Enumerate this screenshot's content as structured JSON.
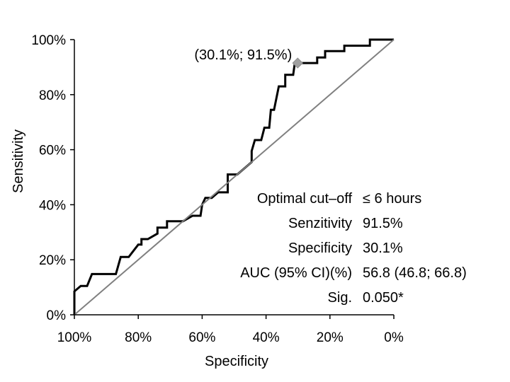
{
  "chart_data": {
    "type": "line",
    "title": "",
    "xlabel": "Specificity",
    "ylabel": "Sensitivity",
    "x_reversed": true,
    "xlim": [
      100,
      0
    ],
    "ylim": [
      0,
      100
    ],
    "grid": false,
    "legend": "none",
    "x_ticks": [
      "100%",
      "80%",
      "60%",
      "40%",
      "20%",
      "0%"
    ],
    "x_tick_values": [
      100,
      80,
      60,
      40,
      20,
      0
    ],
    "y_ticks": [
      "0%",
      "20%",
      "40%",
      "60%",
      "80%",
      "100%"
    ],
    "y_tick_values": [
      0,
      20,
      40,
      60,
      80,
      100
    ],
    "series": [
      {
        "role": "roc-curve",
        "color": "#000000",
        "points": [
          [
            100,
            0
          ],
          [
            100,
            8.5
          ],
          [
            98,
            10.5
          ],
          [
            96,
            10.5
          ],
          [
            94.5,
            14.8
          ],
          [
            87,
            14.8
          ],
          [
            85.5,
            21
          ],
          [
            83,
            21
          ],
          [
            80,
            25.5
          ],
          [
            79,
            25.5
          ],
          [
            79,
            27.5
          ],
          [
            77,
            27.5
          ],
          [
            74,
            29.5
          ],
          [
            74,
            31.7
          ],
          [
            71,
            31.7
          ],
          [
            71,
            34
          ],
          [
            66,
            34
          ],
          [
            63,
            36
          ],
          [
            60.5,
            36
          ],
          [
            60,
            40
          ],
          [
            59,
            42.5
          ],
          [
            57,
            42.5
          ],
          [
            55,
            44.5
          ],
          [
            52,
            44.5
          ],
          [
            52,
            51
          ],
          [
            49,
            51
          ],
          [
            44.5,
            55.5
          ],
          [
            44.5,
            59.5
          ],
          [
            43.5,
            63.5
          ],
          [
            41.5,
            63.5
          ],
          [
            40.5,
            68
          ],
          [
            39,
            68
          ],
          [
            38.5,
            74.5
          ],
          [
            37.5,
            74.5
          ],
          [
            36,
            83
          ],
          [
            34,
            83
          ],
          [
            34,
            87.2
          ],
          [
            31.5,
            87.2
          ],
          [
            31,
            91.5
          ],
          [
            24,
            91.5
          ],
          [
            24,
            93.5
          ],
          [
            21.5,
            93.5
          ],
          [
            21.5,
            95.8
          ],
          [
            15.5,
            95.8
          ],
          [
            15.5,
            97.8
          ],
          [
            7.5,
            97.8
          ],
          [
            7.5,
            100
          ],
          [
            0,
            100
          ]
        ]
      },
      {
        "role": "reference-diagonal",
        "color": "#808080",
        "points": [
          [
            100,
            0
          ],
          [
            0,
            100
          ]
        ]
      }
    ],
    "marker": {
      "x": 30.1,
      "y": 91.5,
      "shape": "diamond",
      "color": "#a0a0a0",
      "label": "(30.1%; 91.5%)"
    },
    "stats": [
      {
        "label": "Optimal cut–off",
        "value": "≤ 6 hours"
      },
      {
        "label": "Senzitivity",
        "value": "91.5%"
      },
      {
        "label": "Specificity",
        "value": "30.1%"
      },
      {
        "label": "AUC (95% CI)(%)",
        "value": "56.8 (46.8; 66.8)"
      },
      {
        "label": "Sig.",
        "value": "0.050*"
      }
    ]
  }
}
